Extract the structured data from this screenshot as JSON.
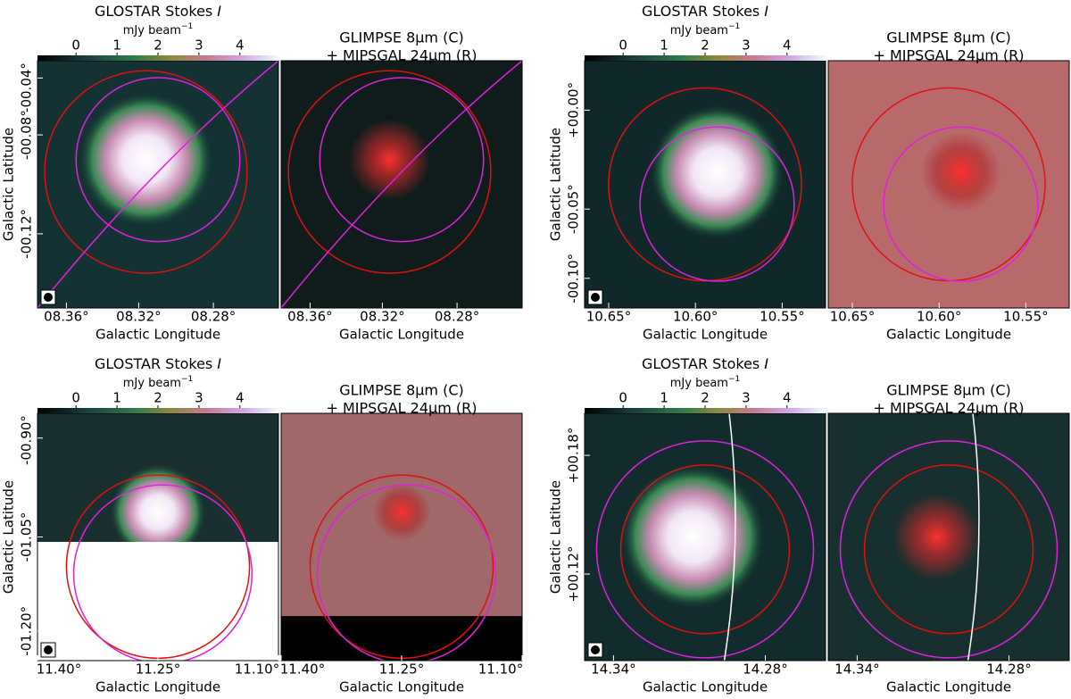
{
  "panels": [
    {
      "left_title_prefix": "GLOSTAR Stokes",
      "left_title_symbol": "I",
      "colorbar_unit": "mJy beam",
      "colorbar_exponent": "−1",
      "colorbar_ticks": [
        "0",
        "1",
        "2",
        "3",
        "4"
      ],
      "right_title_line1": "GLIMPSE 8μm (C)",
      "right_title_line2": "+ MIPSGAL 24μm (R)",
      "x_ticks": [
        "08.36°",
        "08.32°",
        "08.28°"
      ],
      "y_ticks": [
        "-00.04°",
        "-00.08°",
        "-00.12°"
      ],
      "x_label": "Galactic Longitude",
      "y_label": "Galactic Latitude"
    },
    {
      "left_title_prefix": "GLOSTAR Stokes",
      "left_title_symbol": "I",
      "colorbar_unit": "mJy beam",
      "colorbar_exponent": "−1",
      "colorbar_ticks": [
        "0",
        "1",
        "2",
        "3",
        "4"
      ],
      "right_title_line1": "GLIMPSE 8μm (C)",
      "right_title_line2": "+ MIPSGAL 24μm (R)",
      "x_ticks": [
        "10.65°",
        "10.60°",
        "10.55°"
      ],
      "y_ticks": [
        "+00.00°",
        "-00.05°",
        "-00.10°"
      ],
      "x_label": "Galactic Longitude",
      "y_label": "Galactic Latitude"
    },
    {
      "left_title_prefix": "GLOSTAR Stokes",
      "left_title_symbol": "I",
      "colorbar_unit": "mJy beam",
      "colorbar_exponent": "−1",
      "colorbar_ticks": [
        "0",
        "1",
        "2",
        "3",
        "4"
      ],
      "right_title_line1": "GLIMPSE 8μm (C)",
      "right_title_line2": "+ MIPSGAL 24μm (R)",
      "x_ticks": [
        "11.40°",
        "11.25°",
        "11.10°"
      ],
      "y_ticks": [
        "-00.90°",
        "-01.05°",
        "-01.20°"
      ],
      "x_label": "Galactic Longitude",
      "y_label": "Galactic Latitude"
    },
    {
      "left_title_prefix": "GLOSTAR Stokes",
      "left_title_symbol": "I",
      "colorbar_unit": "mJy beam",
      "colorbar_exponent": "−1",
      "colorbar_ticks": [
        "0",
        "1",
        "2",
        "3",
        "4"
      ],
      "right_title_line1": "GLIMPSE 8μm (C)",
      "right_title_line2": "+ MIPSGAL 24μm (R)",
      "x_ticks": [
        "14.34°",
        "14.28°"
      ],
      "y_ticks": [
        "+00.18°",
        "+00.12°"
      ],
      "x_label": "Galactic Longitude",
      "y_label": "Galactic Latitude"
    }
  ]
}
